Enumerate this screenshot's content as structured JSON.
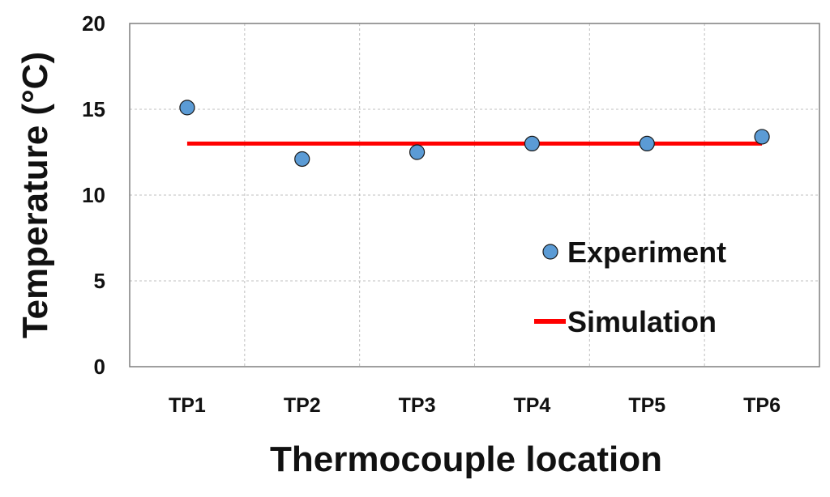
{
  "chart_data": {
    "type": "scatter",
    "categories": [
      "TP1",
      "TP2",
      "TP3",
      "TP4",
      "TP5",
      "TP6"
    ],
    "xlabel": "Thermocouple location",
    "ylabel": "Temperature (°C)",
    "ylim": [
      0,
      20
    ],
    "yticks": [
      "0",
      "5",
      "10",
      "15",
      "20"
    ],
    "grid": true,
    "legend_position": "right",
    "series": [
      {
        "name": "Experiment",
        "kind": "points",
        "color": "#5b9bd5",
        "values": [
          15.1,
          12.1,
          12.5,
          13.0,
          13.0,
          13.4
        ]
      },
      {
        "name": "Simulation",
        "kind": "line",
        "color": "#ff0000",
        "values": [
          13.0,
          13.0,
          13.0,
          13.0,
          13.0,
          13.0
        ]
      }
    ]
  }
}
